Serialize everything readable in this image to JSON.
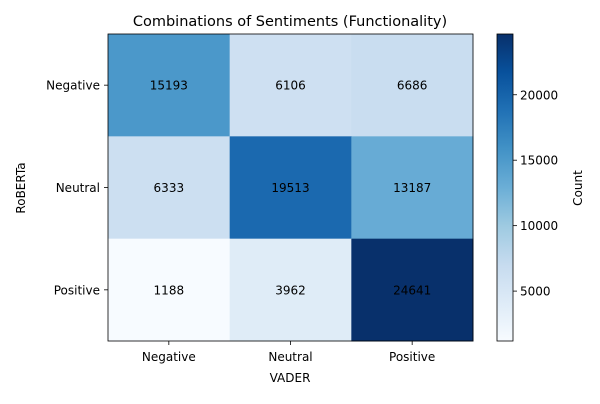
{
  "chart_data": {
    "type": "heatmap",
    "title": "Combinations of Sentiments (Functionality)",
    "xlabel": "VADER",
    "ylabel": "RoBERTa",
    "x_categories": [
      "Negative",
      "Neutral",
      "Positive"
    ],
    "y_categories": [
      "Negative",
      "Neutral",
      "Positive"
    ],
    "values": [
      [
        15193,
        6106,
        6686
      ],
      [
        6333,
        19513,
        13187
      ],
      [
        1188,
        3962,
        24641
      ]
    ],
    "colorbar": {
      "label": "Count",
      "ticks": [
        5000,
        10000,
        15000,
        20000
      ],
      "range": [
        1188,
        24641
      ]
    },
    "colormap": "Blues",
    "grid": false
  }
}
